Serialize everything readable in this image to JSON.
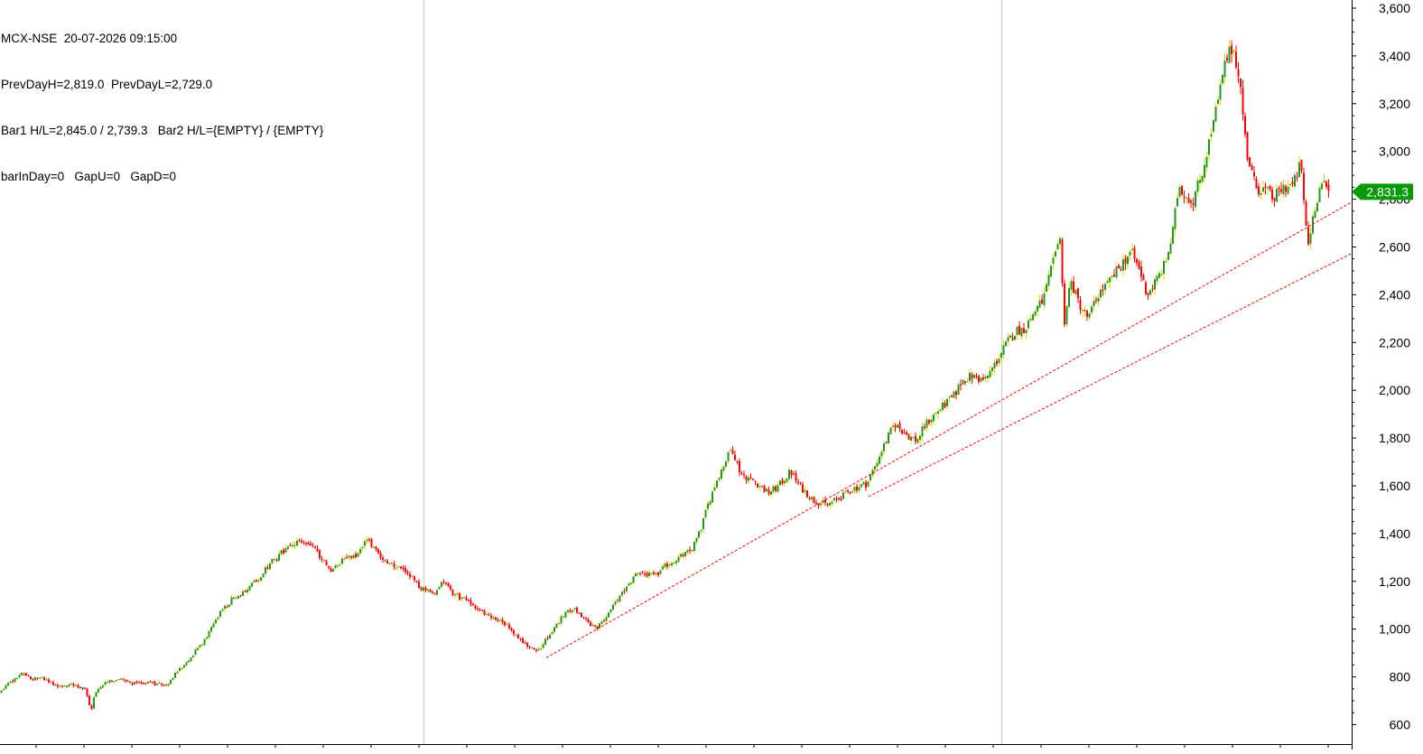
{
  "header": {
    "line1": "MCX-NSE  20-07-2026 09:15:00",
    "line2": "PrevDayH=2,819.0  PrevDayL=2,729.0",
    "line3": "Bar1 H/L=2,845.0 / 2,739.3   Bar2 H/L={EMPTY} / {EMPTY}",
    "line4": "barInDay=0   GapU=0   GapD=0"
  },
  "colors": {
    "up": "#1a9a1a",
    "down": "#ff0000",
    "wick_up": "#dddd00",
    "trendline": "#ff0000",
    "price_tag": "#0a9a0a",
    "separator": "#c8c8c8"
  },
  "chart_data": {
    "type": "candlestick",
    "symbol": "MCX-NSE",
    "last_price": 2831.3,
    "last_price_label": "2,831.3",
    "ylim": [
      550,
      3620
    ],
    "y_ticks": [
      600,
      800,
      1000,
      1200,
      1400,
      1600,
      1800,
      2000,
      2200,
      2400,
      2600,
      2800,
      3000,
      3200,
      3400,
      3600
    ],
    "y_tick_labels": [
      "600",
      "800",
      "1,000",
      "1,200",
      "1,400",
      "1,600",
      "1,800",
      "2,000",
      "2,200",
      "2,400",
      "2,600",
      "2,800",
      "3,000",
      "3,200",
      "3,400",
      "3,600"
    ],
    "n_bars": 590,
    "period_separators_at_bar": [
      187,
      443
    ],
    "close_path": [
      [
        0,
        735
      ],
      [
        10,
        775
      ],
      [
        25,
        820
      ],
      [
        35,
        790
      ],
      [
        45,
        795
      ],
      [
        55,
        775
      ],
      [
        65,
        755
      ],
      [
        80,
        770
      ],
      [
        95,
        745
      ],
      [
        100,
        655
      ],
      [
        105,
        730
      ],
      [
        115,
        778
      ],
      [
        130,
        790
      ],
      [
        145,
        772
      ],
      [
        165,
        775
      ],
      [
        175,
        770
      ],
      [
        185,
        770
      ],
      [
        195,
        820
      ],
      [
        205,
        855
      ],
      [
        215,
        905
      ],
      [
        225,
        950
      ],
      [
        240,
        1050
      ],
      [
        255,
        1120
      ],
      [
        270,
        1160
      ],
      [
        285,
        1210
      ],
      [
        300,
        1280
      ],
      [
        320,
        1350
      ],
      [
        335,
        1370
      ],
      [
        350,
        1330
      ],
      [
        365,
        1240
      ],
      [
        380,
        1290
      ],
      [
        395,
        1310
      ],
      [
        405,
        1380
      ],
      [
        415,
        1330
      ],
      [
        425,
        1290
      ],
      [
        440,
        1260
      ],
      [
        455,
        1220
      ],
      [
        465,
        1170
      ],
      [
        480,
        1150
      ],
      [
        490,
        1200
      ],
      [
        500,
        1150
      ],
      [
        510,
        1130
      ],
      [
        520,
        1110
      ],
      [
        530,
        1080
      ],
      [
        545,
        1050
      ],
      [
        560,
        1020
      ],
      [
        575,
        960
      ],
      [
        585,
        930
      ],
      [
        592,
        905
      ],
      [
        598,
        920
      ],
      [
        605,
        960
      ],
      [
        615,
        1020
      ],
      [
        625,
        1060
      ],
      [
        635,
        1090
      ],
      [
        648,
        1040
      ],
      [
        660,
        1000
      ],
      [
        672,
        1060
      ],
      [
        685,
        1130
      ],
      [
        695,
        1180
      ],
      [
        705,
        1240
      ],
      [
        715,
        1230
      ],
      [
        725,
        1220
      ],
      [
        738,
        1270
      ],
      [
        752,
        1300
      ],
      [
        765,
        1330
      ],
      [
        775,
        1410
      ],
      [
        785,
        1540
      ],
      [
        795,
        1640
      ],
      [
        810,
        1760
      ],
      [
        820,
        1650
      ],
      [
        835,
        1620
      ],
      [
        850,
        1570
      ],
      [
        862,
        1600
      ],
      [
        875,
        1660
      ],
      [
        885,
        1600
      ],
      [
        900,
        1540
      ],
      [
        915,
        1520
      ],
      [
        930,
        1550
      ],
      [
        945,
        1590
      ],
      [
        960,
        1610
      ],
      [
        975,
        1740
      ],
      [
        990,
        1860
      ],
      [
        1005,
        1810
      ],
      [
        1015,
        1790
      ],
      [
        1025,
        1860
      ],
      [
        1040,
        1920
      ],
      [
        1055,
        1970
      ],
      [
        1065,
        2040
      ],
      [
        1075,
        2060
      ],
      [
        1090,
        2040
      ],
      [
        1100,
        2100
      ],
      [
        1115,
        2200
      ],
      [
        1125,
        2250
      ],
      [
        1135,
        2260
      ],
      [
        1145,
        2330
      ],
      [
        1155,
        2380
      ],
      [
        1168,
        2560
      ],
      [
        1173,
        2680
      ],
      [
        1178,
        2280
      ],
      [
        1185,
        2460
      ],
      [
        1195,
        2360
      ],
      [
        1205,
        2300
      ],
      [
        1215,
        2400
      ],
      [
        1228,
        2450
      ],
      [
        1240,
        2520
      ],
      [
        1252,
        2580
      ],
      [
        1262,
        2500
      ],
      [
        1270,
        2400
      ],
      [
        1280,
        2460
      ],
      [
        1290,
        2530
      ],
      [
        1298,
        2650
      ],
      [
        1305,
        2860
      ],
      [
        1312,
        2820
      ],
      [
        1320,
        2790
      ],
      [
        1330,
        2900
      ],
      [
        1340,
        3060
      ],
      [
        1348,
        3200
      ],
      [
        1357,
        3380
      ],
      [
        1365,
        3440
      ],
      [
        1372,
        3320
      ],
      [
        1380,
        3000
      ],
      [
        1390,
        2850
      ],
      [
        1400,
        2840
      ],
      [
        1410,
        2800
      ],
      [
        1420,
        2850
      ],
      [
        1432,
        2860
      ],
      [
        1440,
        2950
      ],
      [
        1448,
        2600
      ],
      [
        1455,
        2760
      ],
      [
        1463,
        2870
      ],
      [
        1470,
        2831
      ]
    ],
    "trendlines": [
      {
        "from": [
          605,
          880
        ],
        "to": [
          1498,
          2790
        ]
      },
      {
        "from": [
          962,
          1555
        ],
        "to": [
          1498,
          2575
        ]
      }
    ]
  }
}
